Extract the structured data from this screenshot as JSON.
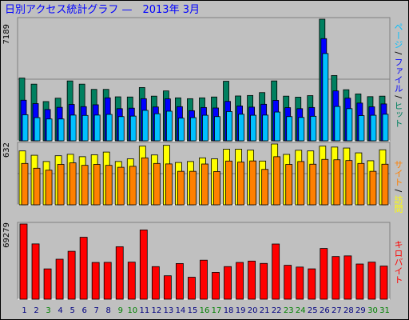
{
  "title": "日別アクセス統計グラフ —　2013年 3月",
  "colors": {
    "background": "#c0c0c0",
    "hits": "#008060",
    "files": "#0000ff",
    "pages": "#00c0ff",
    "visits": "#ffff00",
    "sites": "#ff8000",
    "kbytes": "#ff0000",
    "weekend_day": "#008000",
    "weekday": "#000080"
  },
  "right_labels": {
    "top": [
      {
        "text": "ページ",
        "color": "#00c0ff"
      },
      {
        "text": " / ",
        "color": "#000000"
      },
      {
        "text": "ファイル",
        "color": "#0000ff"
      },
      {
        "text": " / ",
        "color": "#000000"
      },
      {
        "text": "ヒット",
        "color": "#008060"
      }
    ],
    "mid": [
      {
        "text": "サイト",
        "color": "#ff8000"
      },
      {
        "text": " / ",
        "color": "#000000"
      },
      {
        "text": "訪問",
        "color": "#ffff00"
      }
    ],
    "bottom": [
      {
        "text": "キロバイト",
        "color": "#ff0000"
      }
    ]
  },
  "chart_data": [
    {
      "type": "bar",
      "ymax_label": "7189",
      "ylim": [
        0,
        7189
      ],
      "categories": [
        "1",
        "2",
        "3",
        "4",
        "5",
        "6",
        "7",
        "8",
        "9",
        "10",
        "11",
        "12",
        "13",
        "14",
        "15",
        "16",
        "17",
        "18",
        "19",
        "20",
        "21",
        "22",
        "23",
        "24",
        "25",
        "26",
        "27",
        "28",
        "29",
        "30",
        "31"
      ],
      "series": [
        {
          "name": "ヒット",
          "values": [
            3710,
            3350,
            2320,
            2520,
            3540,
            3350,
            3040,
            3040,
            2600,
            2590,
            3150,
            2640,
            2950,
            2540,
            2490,
            2540,
            2590,
            3520,
            2650,
            2680,
            2850,
            3540,
            2640,
            2580,
            2670,
            7189,
            3860,
            3020,
            2770,
            2610,
            2640
          ]
        },
        {
          "name": "ファイル",
          "values": [
            2400,
            2200,
            1850,
            1980,
            2150,
            2020,
            2130,
            2540,
            1900,
            1930,
            2490,
            2000,
            2480,
            2020,
            1780,
            1970,
            1940,
            2330,
            2060,
            1990,
            2160,
            2390,
            1960,
            1900,
            1970,
            6040,
            2950,
            2520,
            2230,
            2010,
            2180
          ]
        },
        {
          "name": "ページ",
          "values": [
            1540,
            1370,
            1290,
            1290,
            1520,
            1500,
            1520,
            1560,
            1430,
            1460,
            1800,
            1600,
            1750,
            1340,
            1370,
            1510,
            1430,
            1730,
            1570,
            1510,
            1520,
            1700,
            1430,
            1380,
            1450,
            5160,
            2030,
            1900,
            1490,
            1510,
            1570
          ]
        }
      ]
    },
    {
      "type": "bar",
      "ymax_label": "632",
      "ylim": [
        0,
        632
      ],
      "categories": [
        "1",
        "2",
        "3",
        "4",
        "5",
        "6",
        "7",
        "8",
        "9",
        "10",
        "11",
        "12",
        "13",
        "14",
        "15",
        "16",
        "17",
        "18",
        "19",
        "20",
        "21",
        "22",
        "23",
        "24",
        "25",
        "26",
        "27",
        "28",
        "29",
        "30",
        "31"
      ],
      "series": [
        {
          "name": "訪問",
          "values": [
            560,
            515,
            450,
            510,
            525,
            500,
            520,
            548,
            450,
            478,
            610,
            518,
            618,
            440,
            450,
            488,
            478,
            578,
            578,
            568,
            455,
            632,
            524,
            567,
            560,
            610,
            600,
            590,
            540,
            458,
            572
          ]
        },
        {
          "name": "サイト",
          "values": [
            430,
            380,
            360,
            420,
            436,
            410,
            420,
            410,
            390,
            400,
            488,
            430,
            425,
            348,
            348,
            424,
            346,
            455,
            444,
            456,
            368,
            500,
            420,
            450,
            422,
            472,
            468,
            460,
            430,
            348,
            422
          ]
        }
      ]
    },
    {
      "type": "bar",
      "ymax_label": "69279",
      "ylim": [
        0,
        69279
      ],
      "categories": [
        "1",
        "2",
        "3",
        "4",
        "5",
        "6",
        "7",
        "8",
        "9",
        "10",
        "11",
        "12",
        "13",
        "14",
        "15",
        "16",
        "17",
        "18",
        "19",
        "20",
        "21",
        "22",
        "23",
        "24",
        "25",
        "26",
        "27",
        "28",
        "29",
        "30",
        "31"
      ],
      "series": [
        {
          "name": "キロバイト",
          "values": [
            69279,
            50950,
            27930,
            36840,
            44150,
            57060,
            33860,
            33960,
            48360,
            34160,
            63800,
            30020,
            21600,
            32860,
            20250,
            35960,
            24740,
            30040,
            33870,
            35130,
            32980,
            50850,
            31240,
            29610,
            27960,
            46730,
            39300,
            39910,
            32420,
            34170,
            30550
          ]
        }
      ]
    }
  ],
  "weekend_days": [
    "3",
    "9",
    "10",
    "16",
    "17",
    "23",
    "24",
    "30",
    "31"
  ]
}
